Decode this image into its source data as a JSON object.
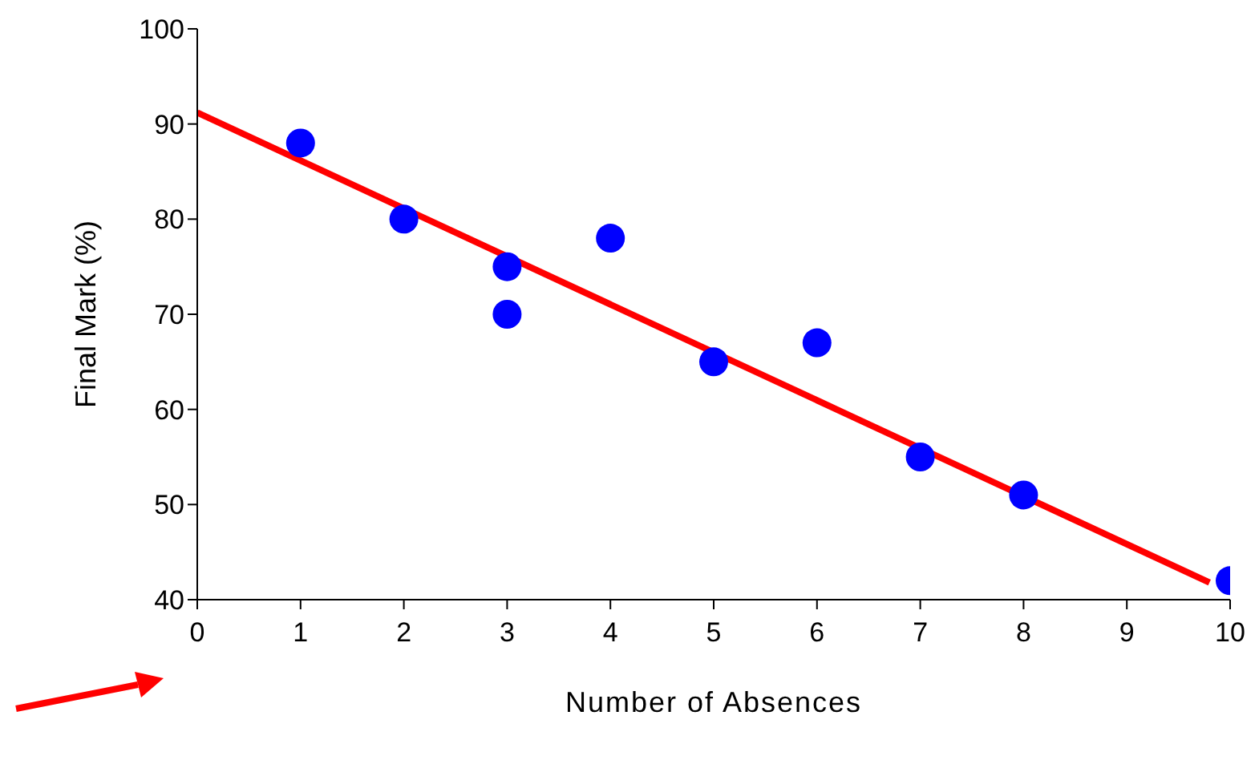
{
  "chart_data": {
    "type": "scatter",
    "xlabel": "Number of Absences",
    "ylabel": "Final Mark (%)",
    "xlim": [
      0,
      10
    ],
    "xticks": [
      0,
      1,
      2,
      3,
      4,
      5,
      6,
      7,
      8,
      9,
      10
    ],
    "ylim": [
      40,
      100
    ],
    "yticks": [
      40,
      50,
      60,
      70,
      80,
      90,
      100
    ],
    "marker": "circle",
    "series": [
      {
        "color": "#0000ff",
        "x": [
          1,
          2,
          3,
          3,
          4,
          5,
          6,
          7,
          8,
          10
        ],
        "values": [
          88,
          80,
          75,
          70,
          78,
          65,
          67,
          55,
          51,
          42
        ]
      },
      {
        "type": "line",
        "color": "#ff0000",
        "marker": "none",
        "line_style": "solid",
        "x": [
          0,
          9.8
        ],
        "values": [
          91.2,
          41.8
        ]
      }
    ]
  }
}
